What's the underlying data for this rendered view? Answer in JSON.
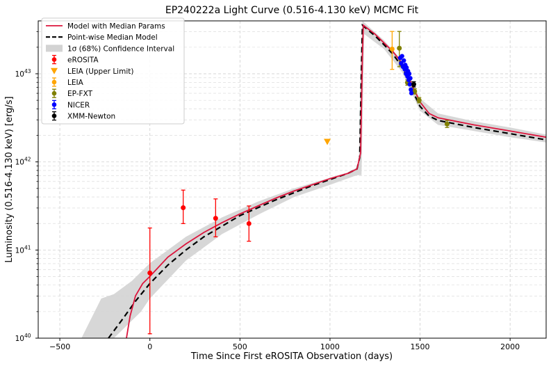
{
  "chart_data": {
    "type": "scatter",
    "title": "EP240222a Light Curve (0.516-4.130 keV) MCMC Fit",
    "xlabel": "Time Since First eROSITA Observation (days)",
    "ylabel": "Luminosity (0.516-4.130 keV) [erg/s]",
    "xlim": [
      -620,
      2200
    ],
    "ylim_log10": [
      40,
      43.6
    ],
    "yscale": "log",
    "x_ticks": [
      -500,
      0,
      500,
      1000,
      1500,
      2000
    ],
    "x_tick_labels": [
      "−500",
      "0",
      "500",
      "1000",
      "1500",
      "2000"
    ],
    "y_ticks_log10": [
      40,
      41,
      42,
      43
    ],
    "y_tick_labels": [
      {
        "base": "10",
        "exp": "40"
      },
      {
        "base": "10",
        "exp": "41"
      },
      {
        "base": "10",
        "exp": "42"
      },
      {
        "base": "10",
        "exp": "43"
      }
    ],
    "grid": true,
    "legend_position": "upper-left",
    "legend": [
      {
        "key": "model",
        "label": "Model with Median Params",
        "style": "line",
        "color": "#dc143c"
      },
      {
        "key": "median",
        "label": "Point-wise Median Model",
        "style": "dashed",
        "color": "#000000"
      },
      {
        "key": "band",
        "label": "1σ (68%) Confidence Interval",
        "style": "band",
        "color": "#d3d3d3"
      },
      {
        "key": "erosita",
        "label": "eROSITA",
        "style": "errorbar-circle",
        "color": "#ff0000"
      },
      {
        "key": "leia_ul",
        "label": "LEIA (Upper Limit)",
        "style": "triangle-down",
        "color": "#ffa500"
      },
      {
        "key": "leia",
        "label": "LEIA",
        "style": "errorbar-circle",
        "color": "#ffa500"
      },
      {
        "key": "epfxt",
        "label": "EP-FXT",
        "style": "errorbar-circle",
        "color": "#808000"
      },
      {
        "key": "nicer",
        "label": "NICER",
        "style": "errorbar-circle",
        "color": "#0000ff"
      },
      {
        "key": "xmm",
        "label": "XMM-Newton",
        "style": "errorbar-circle",
        "color": "#000000"
      }
    ],
    "model_median_params": [
      [
        -130,
        40.0
      ],
      [
        -110,
        40.25
      ],
      [
        -80,
        40.48
      ],
      [
        -40,
        40.62
      ],
      [
        0,
        40.7
      ],
      [
        100,
        40.92
      ],
      [
        200,
        41.07
      ],
      [
        300,
        41.2
      ],
      [
        400,
        41.31
      ],
      [
        500,
        41.41
      ],
      [
        600,
        41.5
      ],
      [
        700,
        41.59
      ],
      [
        800,
        41.67
      ],
      [
        900,
        41.74
      ],
      [
        1000,
        41.81
      ],
      [
        1100,
        41.87
      ],
      [
        1150,
        41.92
      ],
      [
        1170,
        42.1
      ],
      [
        1180,
        43.2
      ],
      [
        1185,
        43.55
      ],
      [
        1250,
        43.45
      ],
      [
        1300,
        43.35
      ],
      [
        1350,
        43.25
      ],
      [
        1400,
        43.12
      ],
      [
        1430,
        43.0
      ],
      [
        1460,
        42.85
      ],
      [
        1500,
        42.68
      ],
      [
        1550,
        42.55
      ],
      [
        1600,
        42.5
      ],
      [
        1800,
        42.42
      ],
      [
        2000,
        42.35
      ],
      [
        2200,
        42.28
      ]
    ],
    "pointwise_median": [
      [
        -230,
        40.0
      ],
      [
        -150,
        40.22
      ],
      [
        -80,
        40.42
      ],
      [
        0,
        40.62
      ],
      [
        100,
        40.83
      ],
      [
        200,
        41.0
      ],
      [
        300,
        41.15
      ],
      [
        400,
        41.27
      ],
      [
        500,
        41.39
      ],
      [
        600,
        41.48
      ],
      [
        700,
        41.57
      ],
      [
        800,
        41.65
      ],
      [
        900,
        41.73
      ],
      [
        1000,
        41.8
      ],
      [
        1100,
        41.87
      ],
      [
        1150,
        41.92
      ],
      [
        1165,
        42.05
      ],
      [
        1175,
        43.1
      ],
      [
        1180,
        43.55
      ],
      [
        1250,
        43.43
      ],
      [
        1300,
        43.33
      ],
      [
        1350,
        43.22
      ],
      [
        1400,
        43.08
      ],
      [
        1430,
        42.95
      ],
      [
        1460,
        42.8
      ],
      [
        1500,
        42.63
      ],
      [
        1550,
        42.52
      ],
      [
        1600,
        42.47
      ],
      [
        1800,
        42.39
      ],
      [
        2000,
        42.32
      ],
      [
        2200,
        42.25
      ]
    ],
    "confidence_upper": [
      [
        -270,
        40.45
      ],
      [
        -200,
        40.5
      ],
      [
        -100,
        40.65
      ],
      [
        0,
        40.85
      ],
      [
        200,
        41.15
      ],
      [
        400,
        41.37
      ],
      [
        600,
        41.55
      ],
      [
        800,
        41.7
      ],
      [
        1000,
        41.82
      ],
      [
        1100,
        41.88
      ],
      [
        1160,
        41.95
      ],
      [
        1170,
        43.1
      ],
      [
        1180,
        43.6
      ],
      [
        1300,
        43.38
      ],
      [
        1400,
        43.15
      ],
      [
        1500,
        42.72
      ],
      [
        1600,
        42.55
      ],
      [
        1800,
        42.46
      ],
      [
        2000,
        42.39
      ],
      [
        2200,
        42.31
      ]
    ],
    "confidence_lower": [
      [
        -380,
        40.0
      ],
      [
        -200,
        40.0
      ],
      [
        -50,
        40.3
      ],
      [
        0,
        40.45
      ],
      [
        200,
        40.88
      ],
      [
        400,
        41.18
      ],
      [
        600,
        41.4
      ],
      [
        800,
        41.6
      ],
      [
        1000,
        41.74
      ],
      [
        1150,
        41.85
      ],
      [
        1175,
        41.85
      ],
      [
        1190,
        43.45
      ],
      [
        1300,
        43.28
      ],
      [
        1400,
        43.02
      ],
      [
        1500,
        42.58
      ],
      [
        1600,
        42.42
      ],
      [
        1800,
        42.35
      ],
      [
        2000,
        42.28
      ],
      [
        2200,
        42.22
      ]
    ],
    "series": [
      {
        "key": "erosita",
        "name": "eROSITA",
        "color": "#ff0000",
        "points": [
          {
            "x": 0,
            "y": 40.74,
            "ylo": 40.05,
            "yhi": 41.25
          },
          {
            "x": 185,
            "y": 41.48,
            "ylo": 41.3,
            "yhi": 41.68
          },
          {
            "x": 365,
            "y": 41.36,
            "ylo": 41.15,
            "yhi": 41.58
          },
          {
            "x": 550,
            "y": 41.3,
            "ylo": 41.1,
            "yhi": 41.5
          }
        ]
      },
      {
        "key": "leia_ul",
        "name": "LEIA (Upper Limit)",
        "color": "#ffa500",
        "points": [
          {
            "x": 985,
            "y": 42.23
          }
        ]
      },
      {
        "key": "leia",
        "name": "LEIA",
        "color": "#ffa500",
        "points": [
          {
            "x": 1345,
            "y": 43.28,
            "ylo": 43.05,
            "yhi": 43.48
          }
        ]
      },
      {
        "key": "epfxt",
        "name": "EP-FXT",
        "color": "#808000",
        "points": [
          {
            "x": 1385,
            "y": 43.29,
            "ylo": 43.08,
            "yhi": 43.48
          },
          {
            "x": 1430,
            "y": 42.9,
            "ylo": 42.87,
            "yhi": 42.93
          },
          {
            "x": 1470,
            "y": 42.8,
            "ylo": 42.77,
            "yhi": 42.83
          },
          {
            "x": 1495,
            "y": 42.7,
            "ylo": 42.67,
            "yhi": 42.73
          },
          {
            "x": 1650,
            "y": 42.43,
            "ylo": 42.39,
            "yhi": 42.47
          }
        ]
      },
      {
        "key": "nicer",
        "name": "NICER",
        "color": "#0000ff",
        "points": [
          {
            "x": 1390,
            "y": 43.18
          },
          {
            "x": 1395,
            "y": 43.12
          },
          {
            "x": 1400,
            "y": 43.2
          },
          {
            "x": 1405,
            "y": 43.08
          },
          {
            "x": 1410,
            "y": 43.15
          },
          {
            "x": 1415,
            "y": 43.05
          },
          {
            "x": 1418,
            "y": 43.1
          },
          {
            "x": 1422,
            "y": 43.0
          },
          {
            "x": 1425,
            "y": 43.07
          },
          {
            "x": 1430,
            "y": 42.97
          },
          {
            "x": 1433,
            "y": 43.03
          },
          {
            "x": 1437,
            "y": 42.93
          },
          {
            "x": 1440,
            "y": 43.0
          },
          {
            "x": 1443,
            "y": 42.88
          },
          {
            "x": 1446,
            "y": 42.95
          },
          {
            "x": 1449,
            "y": 42.82
          },
          {
            "x": 1452,
            "y": 42.78
          }
        ]
      },
      {
        "key": "xmm",
        "name": "XMM-Newton",
        "color": "#000000",
        "points": [
          {
            "x": 1465,
            "y": 42.88,
            "ylo": 42.85,
            "yhi": 42.91
          }
        ]
      }
    ]
  }
}
